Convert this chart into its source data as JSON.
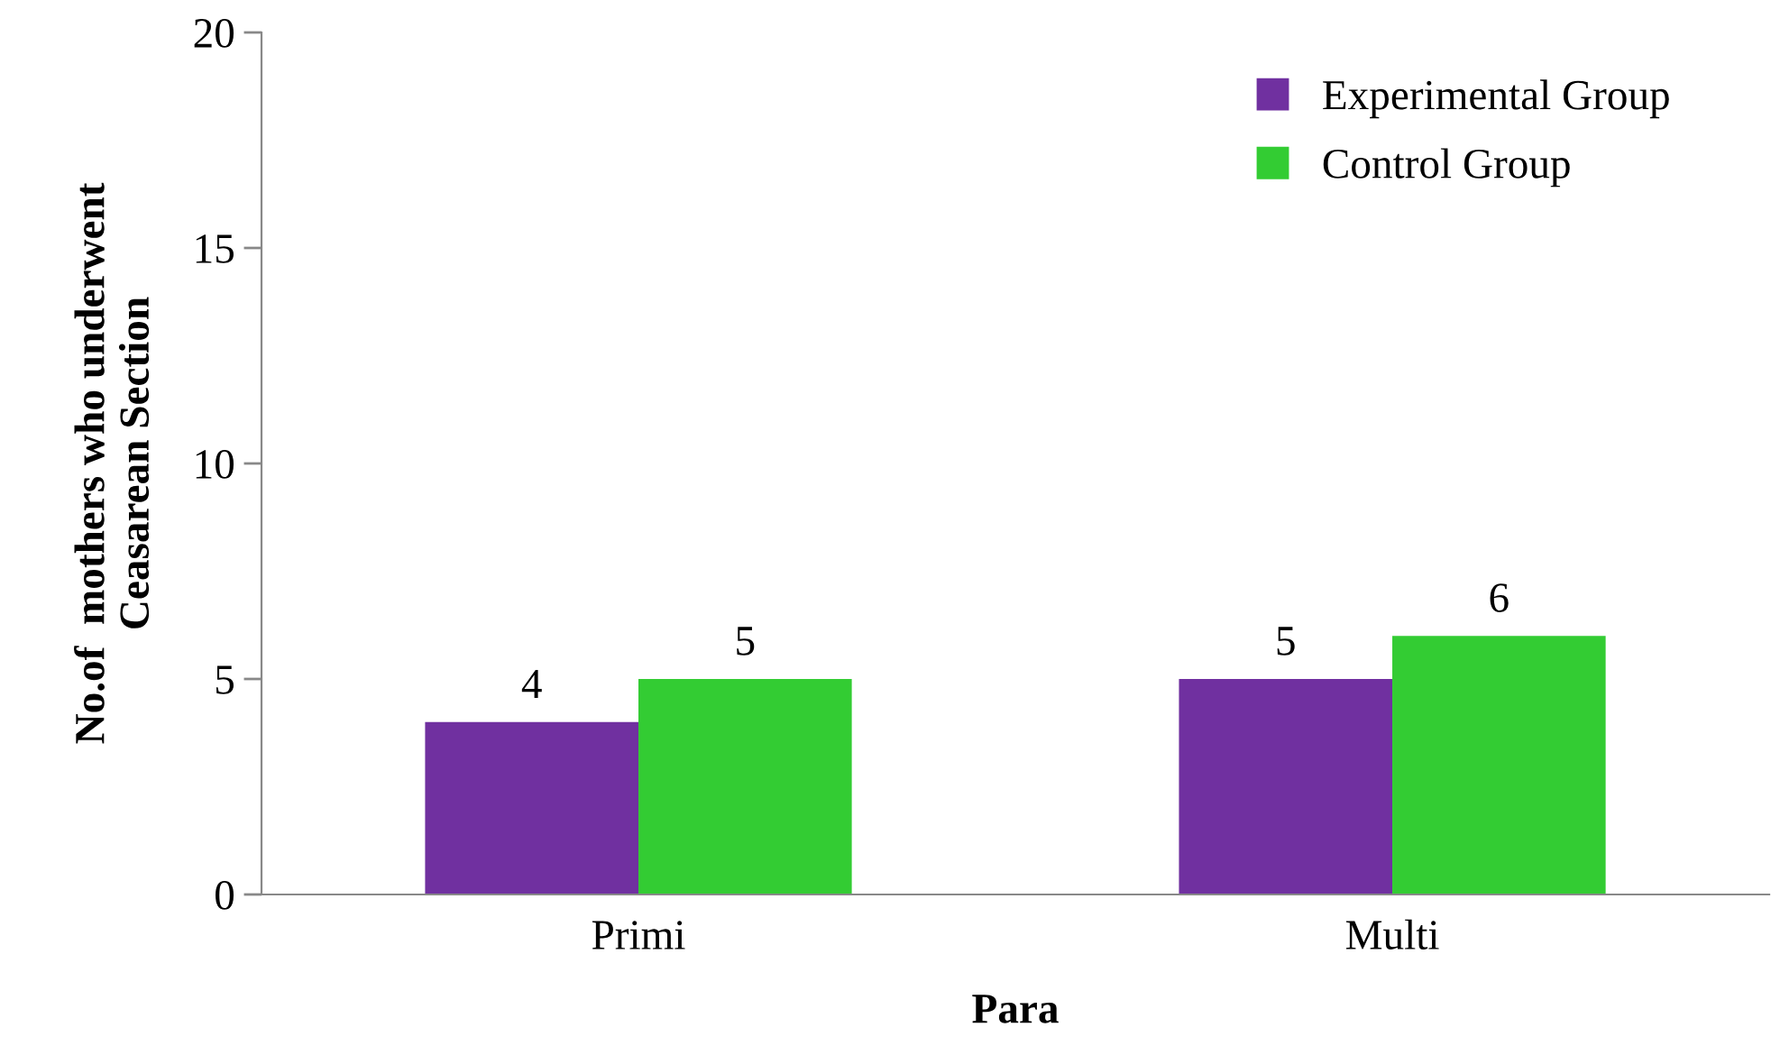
{
  "chart_data": {
    "type": "bar",
    "xlabel": "Para",
    "ylabel": "No.of  mothers who underwent\nCeasarean Section",
    "categories": [
      "Primi",
      "Multi"
    ],
    "series": [
      {
        "name": "Experimental Group",
        "color": "#7030a0",
        "values": [
          4,
          5
        ],
        "value_labels": [
          "4",
          "5"
        ]
      },
      {
        "name": "Control Group",
        "color": "#33cc33",
        "values": [
          5,
          6
        ],
        "value_labels": [
          "5",
          "6"
        ]
      }
    ],
    "ylim": [
      0,
      20
    ],
    "yticks": [
      0,
      5,
      10,
      15,
      20
    ],
    "grid": false,
    "legend": "top right"
  }
}
